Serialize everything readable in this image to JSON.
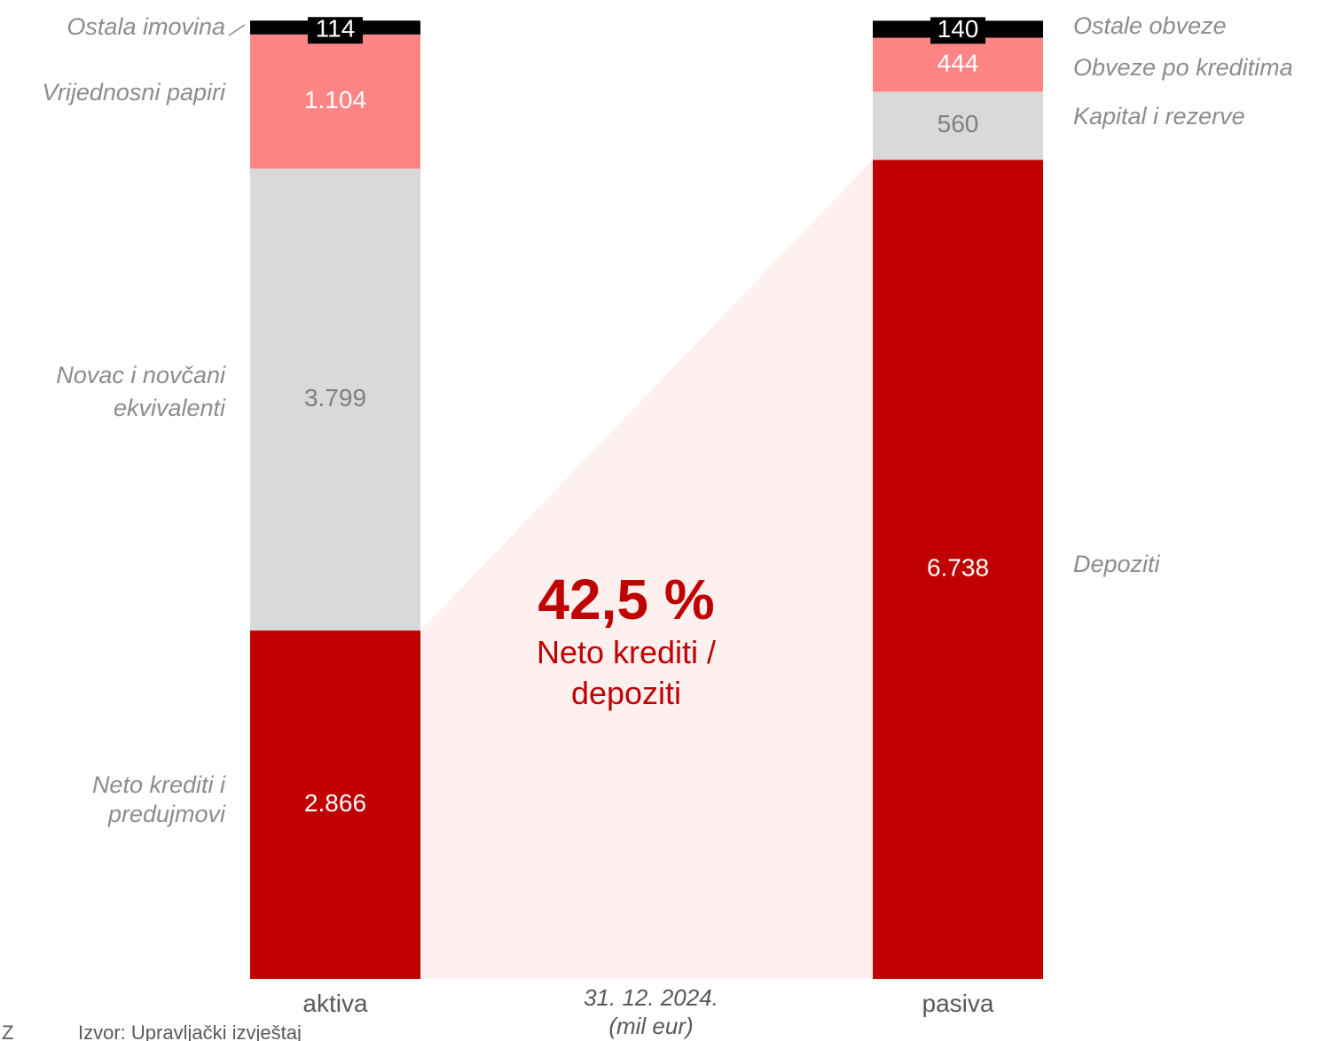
{
  "chart_data": {
    "type": "bar",
    "stacked": true,
    "categories": [
      "aktiva",
      "pasiva"
    ],
    "bars": [
      {
        "category": "aktiva",
        "segments": [
          {
            "value": 2866,
            "label": "2.866",
            "legend": [
              "Neto krediti i",
              "predujmovi"
            ],
            "color": "#c00000",
            "text_color": "#ffffff"
          },
          {
            "value": 3799,
            "label": "3.799",
            "legend": [
              "Novac i novčani",
              "ekvivalenti"
            ],
            "color": "#d9d9d9",
            "text_color": "#7f7f7f"
          },
          {
            "value": 1104,
            "label": "1.104",
            "legend": [
              "Vrijednosni papiri"
            ],
            "color": "#ff8585",
            "text_color": "#ffffff"
          },
          {
            "value": 114,
            "label": "114",
            "legend": [
              "Ostala imovina"
            ],
            "color": "#000000",
            "text_color": "#000000"
          }
        ]
      },
      {
        "category": "pasiva",
        "segments": [
          {
            "value": 6738,
            "label": "6.738",
            "legend": [
              "Depoziti"
            ],
            "color": "#c00000",
            "text_color": "#ffffff"
          },
          {
            "value": 560,
            "label": "560",
            "legend": [
              "Kapital i rezerve"
            ],
            "color": "#d9d9d9",
            "text_color": "#7f7f7f"
          },
          {
            "value": 444,
            "label": "444",
            "legend": [
              "Obveze po kreditima"
            ],
            "color": "#ff8585",
            "text_color": "#ffffff"
          },
          {
            "value": 140,
            "label": "140",
            "legend": [
              "Ostale obveze"
            ],
            "color": "#000000",
            "text_color": "#000000"
          }
        ]
      }
    ],
    "ratio_value": "42,5 %",
    "ratio_label": [
      "Neto krediti /",
      "depoziti"
    ],
    "date_label": "31. 12. 2024.",
    "unit_label": "(mil eur)",
    "connector_color": "#fff0f0"
  },
  "footer": {
    "mark": "Z",
    "source": "Izvor: Upravljački izvještaj"
  }
}
